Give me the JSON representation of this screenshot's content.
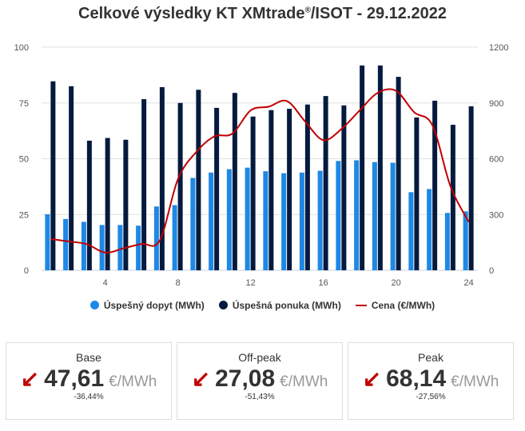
{
  "chart_data": {
    "type": "bar",
    "title": "Celkové výsledky KT XMtrade",
    "title_reg": "®",
    "title_suffix": "/ISOT - 29.12.2022",
    "x": [
      1,
      2,
      3,
      4,
      5,
      6,
      7,
      8,
      9,
      10,
      11,
      12,
      13,
      14,
      15,
      16,
      17,
      18,
      19,
      20,
      21,
      22,
      23,
      24
    ],
    "x_ticks": [
      "4",
      "8",
      "12",
      "16",
      "20",
      "24"
    ],
    "y_left_ticks": [
      "0",
      "25",
      "50",
      "75",
      "100"
    ],
    "y_right_ticks": [
      "0",
      "300",
      "600",
      "900",
      "1200"
    ],
    "ylim": [
      0,
      100
    ],
    "y2lim": [
      0,
      1200
    ],
    "series": [
      {
        "name": "Úspešný dopyt (MWh)",
        "type": "bar",
        "color": "#1e88e5",
        "values": [
          25.1,
          23,
          21.7,
          20.3,
          20.3,
          20,
          28.6,
          29.2,
          41.4,
          43.8,
          45.3,
          46,
          44.4,
          43.5,
          43.8,
          44.6,
          49,
          49.3,
          48.5,
          48.2,
          35,
          36.4,
          25.7,
          26.4
        ]
      },
      {
        "name": "Úspešná ponuka (MWh)",
        "type": "bar",
        "color": "#041a3e",
        "values": [
          84.7,
          82.5,
          58.1,
          59.3,
          58.5,
          76.7,
          82.1,
          75,
          80.9,
          72.8,
          79.5,
          68.9,
          71.8,
          72.4,
          74.3,
          78.1,
          73.9,
          91.8,
          91.8,
          86.7,
          68.5,
          76,
          65.2,
          73.5
        ]
      },
      {
        "name": "Cena (€/MWh)",
        "type": "line",
        "axis": "right",
        "color": "#c00000",
        "values": [
          168,
          155,
          140,
          95,
          118,
          142,
          160,
          490,
          635,
          720,
          735,
          860,
          880,
          910,
          800,
          700,
          760,
          860,
          955,
          965,
          850,
          780,
          450,
          260
        ]
      }
    ],
    "legend": "bottom",
    "grid": true
  },
  "cards": [
    {
      "label": "Base",
      "value": "47,61",
      "unit": "€/MWh",
      "change": "-36,44%"
    },
    {
      "label": "Off-peak",
      "value": "27,08",
      "unit": "€/MWh",
      "change": "-51,43%"
    },
    {
      "label": "Peak",
      "value": "68,14",
      "unit": "€/MWh",
      "change": "-27,56%"
    }
  ]
}
